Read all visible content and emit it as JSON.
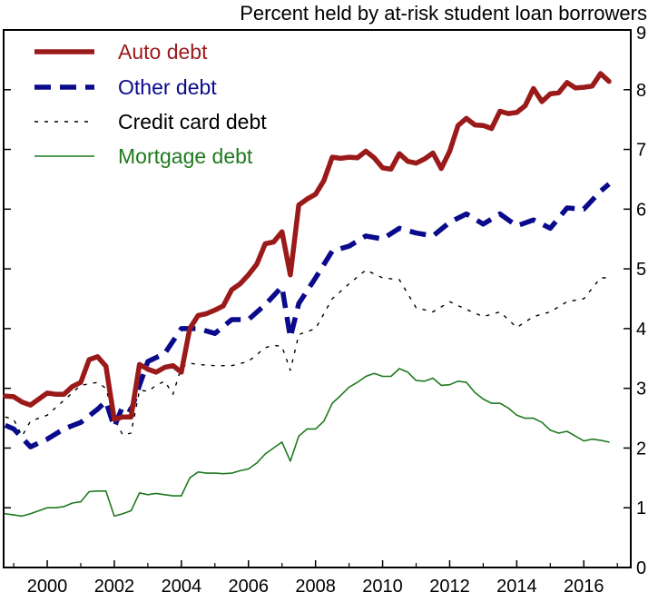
{
  "chart_data": {
    "type": "line",
    "title": "",
    "xlabel": "",
    "ylabel": "Percent held by at-risk student loan borrowers",
    "xlim": [
      1998.7,
      2017.4
    ],
    "ylim": [
      0,
      9
    ],
    "yticks": [
      0,
      1,
      2,
      3,
      4,
      5,
      6,
      7,
      8,
      9
    ],
    "xticks": [
      2000,
      2002,
      2004,
      2006,
      2008,
      2010,
      2012,
      2014,
      2016
    ],
    "grid": false,
    "legend_position": "top-left",
    "series": [
      {
        "name": "Auto debt",
        "color": "#9a1a1a",
        "style": "solid-thick",
        "x": [
          1998.75,
          1999.0,
          1999.25,
          1999.5,
          1999.75,
          2000.0,
          2000.25,
          2000.5,
          2000.75,
          2001.0,
          2001.25,
          2001.5,
          2001.75,
          2002.0,
          2002.25,
          2002.5,
          2002.75,
          2003.0,
          2003.25,
          2003.5,
          2003.75,
          2004.0,
          2004.25,
          2004.5,
          2004.75,
          2005.0,
          2005.25,
          2005.5,
          2005.75,
          2006.0,
          2006.25,
          2006.5,
          2006.75,
          2007.0,
          2007.25,
          2007.5,
          2007.75,
          2008.0,
          2008.25,
          2008.5,
          2008.75,
          2009.0,
          2009.25,
          2009.5,
          2009.75,
          2010.0,
          2010.25,
          2010.5,
          2010.75,
          2011.0,
          2011.25,
          2011.5,
          2011.75,
          2012.0,
          2012.25,
          2012.5,
          2012.75,
          2013.0,
          2013.25,
          2013.5,
          2013.75,
          2014.0,
          2014.25,
          2014.5,
          2014.75,
          2015.0,
          2015.25,
          2015.5,
          2015.75,
          2016.0,
          2016.25,
          2016.5,
          2016.75
        ],
        "values": [
          2.87,
          2.86,
          2.77,
          2.72,
          2.82,
          2.92,
          2.9,
          2.9,
          3.03,
          3.1,
          3.48,
          3.53,
          3.37,
          2.48,
          2.52,
          2.52,
          3.4,
          3.32,
          3.27,
          3.35,
          3.38,
          3.27,
          4.0,
          4.22,
          4.25,
          4.31,
          4.38,
          4.65,
          4.75,
          4.9,
          5.08,
          5.42,
          5.45,
          5.62,
          4.9,
          6.07,
          6.17,
          6.25,
          6.48,
          6.87,
          6.85,
          6.87,
          6.86,
          6.97,
          6.86,
          6.69,
          6.67,
          6.93,
          6.8,
          6.77,
          6.84,
          6.94,
          6.68,
          6.97,
          7.4,
          7.52,
          7.41,
          7.4,
          7.35,
          7.64,
          7.6,
          7.62,
          7.73,
          8.02,
          7.8,
          7.93,
          7.95,
          8.12,
          8.03,
          8.04,
          8.06,
          8.27,
          8.14
        ]
      },
      {
        "name": "Other debt",
        "color": "#0a0a8c",
        "style": "dashed-thick",
        "x": [
          1998.75,
          1999.0,
          1999.5,
          2000.0,
          2000.5,
          2001.0,
          2001.5,
          2001.75,
          2002.0,
          2002.25,
          2002.5,
          2002.75,
          2003.0,
          2003.5,
          2004.0,
          2004.5,
          2005.0,
          2005.5,
          2006.0,
          2006.5,
          2007.0,
          2007.25,
          2007.5,
          2008.0,
          2008.5,
          2009.0,
          2009.5,
          2010.0,
          2010.5,
          2011.0,
          2011.5,
          2012.0,
          2012.5,
          2013.0,
          2013.5,
          2014.0,
          2014.5,
          2015.0,
          2015.5,
          2016.0,
          2016.5,
          2016.75
        ],
        "values": [
          2.38,
          2.32,
          2.02,
          2.15,
          2.32,
          2.43,
          2.65,
          2.78,
          2.35,
          2.7,
          2.63,
          3.05,
          3.45,
          3.58,
          4.0,
          4.0,
          3.92,
          4.15,
          4.15,
          4.4,
          4.7,
          3.85,
          4.42,
          4.85,
          5.3,
          5.38,
          5.55,
          5.5,
          5.68,
          5.6,
          5.55,
          5.78,
          5.92,
          5.75,
          5.92,
          5.72,
          5.82,
          5.68,
          6.02,
          6.0,
          6.3,
          6.42
        ]
      },
      {
        "name": "Credit card debt",
        "color": "#000000",
        "style": "dotted",
        "x": [
          1998.75,
          1999.0,
          1999.25,
          1999.5,
          2000.0,
          2000.5,
          2001.0,
          2001.5,
          2001.75,
          2002.0,
          2002.25,
          2002.5,
          2002.75,
          2003.0,
          2003.25,
          2003.5,
          2003.75,
          2004.0,
          2004.25,
          2004.5,
          2005.0,
          2005.5,
          2006.0,
          2006.5,
          2006.75,
          2007.0,
          2007.25,
          2007.5,
          2007.75,
          2008.0,
          2008.5,
          2009.0,
          2009.5,
          2010.0,
          2010.5,
          2011.0,
          2011.5,
          2012.0,
          2012.5,
          2013.0,
          2013.5,
          2014.0,
          2014.5,
          2015.0,
          2015.5,
          2016.0,
          2016.5,
          2016.75
        ],
        "values": [
          2.52,
          2.48,
          2.2,
          2.45,
          2.55,
          2.8,
          3.05,
          3.1,
          3.0,
          2.5,
          2.22,
          2.25,
          2.97,
          2.95,
          3.05,
          3.12,
          2.9,
          3.35,
          3.42,
          3.4,
          3.38,
          3.38,
          3.45,
          3.68,
          3.72,
          3.7,
          3.3,
          3.9,
          3.95,
          4.0,
          4.5,
          4.75,
          4.98,
          4.85,
          4.82,
          4.35,
          4.28,
          4.45,
          4.32,
          4.2,
          4.28,
          4.02,
          4.2,
          4.28,
          4.45,
          4.5,
          4.85,
          4.85
        ]
      },
      {
        "name": "Mortgage debt",
        "color": "#1e7a1e",
        "style": "solid-thin",
        "x": [
          1998.75,
          1999.0,
          1999.25,
          1999.5,
          1999.75,
          2000.0,
          2000.25,
          2000.5,
          2000.75,
          2001.0,
          2001.25,
          2001.5,
          2001.75,
          2002.0,
          2002.25,
          2002.5,
          2002.75,
          2003.0,
          2003.25,
          2003.5,
          2003.75,
          2004.0,
          2004.25,
          2004.5,
          2004.75,
          2005.0,
          2005.25,
          2005.5,
          2005.75,
          2006.0,
          2006.25,
          2006.5,
          2006.75,
          2007.0,
          2007.25,
          2007.5,
          2007.75,
          2008.0,
          2008.25,
          2008.5,
          2008.75,
          2009.0,
          2009.25,
          2009.5,
          2009.75,
          2010.0,
          2010.25,
          2010.5,
          2010.75,
          2011.0,
          2011.25,
          2011.5,
          2011.75,
          2012.0,
          2012.25,
          2012.5,
          2012.75,
          2013.0,
          2013.25,
          2013.5,
          2013.75,
          2014.0,
          2014.25,
          2014.5,
          2014.75,
          2015.0,
          2015.25,
          2015.5,
          2015.75,
          2016.0,
          2016.25,
          2016.5,
          2016.75
        ],
        "values": [
          0.9,
          0.88,
          0.86,
          0.9,
          0.95,
          1.0,
          1.0,
          1.02,
          1.08,
          1.1,
          1.27,
          1.28,
          1.28,
          0.86,
          0.9,
          0.95,
          1.25,
          1.22,
          1.24,
          1.22,
          1.2,
          1.2,
          1.5,
          1.6,
          1.58,
          1.58,
          1.57,
          1.58,
          1.62,
          1.65,
          1.75,
          1.9,
          2.0,
          2.1,
          1.78,
          2.2,
          2.32,
          2.32,
          2.45,
          2.75,
          2.88,
          3.02,
          3.1,
          3.2,
          3.25,
          3.2,
          3.2,
          3.33,
          3.27,
          3.13,
          3.12,
          3.17,
          3.05,
          3.06,
          3.12,
          3.1,
          2.93,
          2.82,
          2.75,
          2.75,
          2.67,
          2.55,
          2.5,
          2.5,
          2.43,
          2.3,
          2.25,
          2.28,
          2.2,
          2.12,
          2.15,
          2.13,
          2.1
        ]
      }
    ]
  }
}
